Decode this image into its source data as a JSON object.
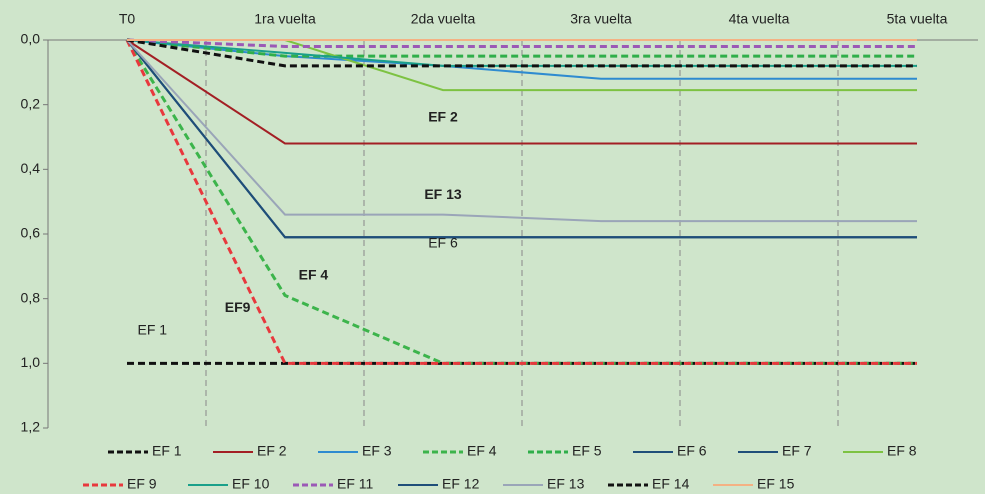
{
  "chart_data": {
    "type": "line",
    "categories": [
      "T0",
      "1ra vuelta",
      "2da vuelta",
      "3ra vuelta",
      "4ta vuelta",
      "5ta vuelta"
    ],
    "ylim": [
      0,
      1.2
    ],
    "y_inverted": true,
    "yticks": [
      {
        "value": 0,
        "label": "0,0"
      },
      {
        "value": 0.2,
        "label": "0,2"
      },
      {
        "value": 0.4,
        "label": "0,4"
      },
      {
        "value": 0.6,
        "label": "0,6"
      },
      {
        "value": 0.8,
        "label": "0,8"
      },
      {
        "value": 1.0,
        "label": "1,0"
      },
      {
        "value": 1.2,
        "label": "1,2"
      }
    ],
    "series": [
      {
        "name": "EF 1",
        "color": "#111111",
        "dash": true,
        "values": [
          1.0,
          1.0,
          1.0,
          1.0,
          1.0,
          1.0
        ]
      },
      {
        "name": "EF 2",
        "color": "#a31f24",
        "dash": false,
        "values": [
          0,
          0.32,
          0.32,
          0.32,
          0.32,
          0.32
        ]
      },
      {
        "name": "EF 3",
        "color": "#2e8bd0",
        "dash": false,
        "values": [
          0,
          0.05,
          0.08,
          0.12,
          0.12,
          0.12
        ]
      },
      {
        "name": "EF 4",
        "color": "#3cb44b",
        "dash": true,
        "values": [
          0,
          0.79,
          1.0,
          1.0,
          1.0,
          1.0
        ]
      },
      {
        "name": "EF 5",
        "color": "#2fae4a",
        "dash": true,
        "values": [
          0,
          0.05,
          0.05,
          0.05,
          0.05,
          0.05
        ]
      },
      {
        "name": "EF 6",
        "color": "#1f4e79",
        "dash": false,
        "values": [
          0,
          0.61,
          0.61,
          0.61,
          0.61,
          0.61
        ]
      },
      {
        "name": "EF 7",
        "color": "#1f4e79",
        "dash": false,
        "values": [
          0,
          0.61,
          0.61,
          0.61,
          0.61,
          0.61
        ]
      },
      {
        "name": "EF 8",
        "color": "#7dc242",
        "dash": false,
        "values": [
          0,
          0,
          0.155,
          0.155,
          0.155,
          0.155
        ]
      },
      {
        "name": "EF 9",
        "color": "#e8383d",
        "dash": true,
        "values": [
          0,
          1.0,
          1.0,
          1.0,
          1.0,
          1.0
        ]
      },
      {
        "name": "EF 10",
        "color": "#1aa08a",
        "dash": false,
        "values": [
          0,
          0.04,
          0.08,
          0.08,
          0.08,
          0.08
        ]
      },
      {
        "name": "EF 11",
        "color": "#9b59b6",
        "dash": true,
        "values": [
          0,
          0.02,
          0.02,
          0.02,
          0.02,
          0.02
        ]
      },
      {
        "name": "EF 12",
        "color": "#1f4e79",
        "dash": false,
        "values": [
          0,
          0.61,
          0.61,
          0.61,
          0.61,
          0.61
        ]
      },
      {
        "name": "EF 13",
        "color": "#9aa5b8",
        "dash": false,
        "values": [
          0,
          0.54,
          0.54,
          0.56,
          0.56,
          0.56
        ]
      },
      {
        "name": "EF 14",
        "color": "#111111",
        "dash": true,
        "values": [
          0,
          0.08,
          0.08,
          0.08,
          0.08,
          0.08
        ]
      },
      {
        "name": "EF 15",
        "color": "#f4b183",
        "dash": false,
        "values": [
          0,
          0,
          0,
          0,
          0,
          0
        ]
      }
    ],
    "annotations": [
      {
        "text": "EF 2",
        "color": "#c0272d",
        "bold": true,
        "x": 2,
        "y": 0.24
      },
      {
        "text": "EF 13",
        "color": "#8c96a8",
        "bold": true,
        "x": 2,
        "y": 0.48
      },
      {
        "text": "EF 6",
        "color": "#222222",
        "bold": false,
        "x": 2,
        "y": 0.63
      },
      {
        "text": "EF 4",
        "color": "#1a8a6a",
        "bold": true,
        "x": 1.18,
        "y": 0.73
      },
      {
        "text": "EF9",
        "color": "#e8383d",
        "bold": true,
        "x": 0.7,
        "y": 0.83
      },
      {
        "text": "EF 1",
        "color": "#222222",
        "bold": false,
        "x": 0.16,
        "y": 0.9
      }
    ]
  }
}
